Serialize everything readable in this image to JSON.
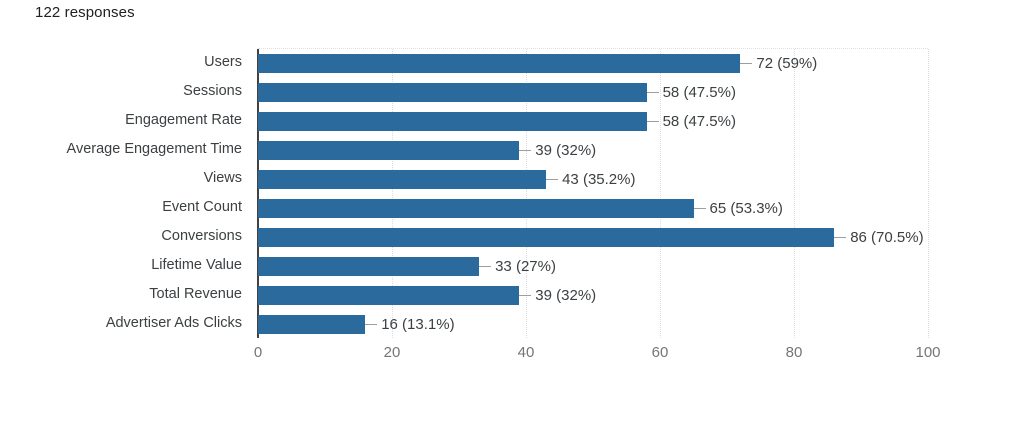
{
  "header": {
    "responses_label": "122 responses"
  },
  "chart_data": {
    "type": "bar",
    "orientation": "horizontal",
    "title": "122 responses",
    "total_responses": 122,
    "categories": [
      "Users",
      "Sessions",
      "Engagement Rate",
      "Average Engagement Time",
      "Views",
      "Event Count",
      "Conversions",
      "Lifetime Value",
      "Total Revenue",
      "Advertiser Ads Clicks"
    ],
    "values": [
      72,
      58,
      58,
      39,
      43,
      65,
      86,
      33,
      39,
      16
    ],
    "value_labels": [
      "72 (59%)",
      "58 (47.5%)",
      "58 (47.5%)",
      "39 (32%)",
      "43 (35.2%)",
      "65 (53.3%)",
      "86 (70.5%)",
      "33 (27%)",
      "39 (32%)",
      "16 (13.1%)"
    ],
    "xlabel": "",
    "ylabel": "",
    "xlim": [
      0,
      100
    ],
    "xticks": [
      0,
      20,
      40,
      60,
      80,
      100
    ],
    "grid": "vertical-dotted",
    "legend": "none",
    "colors": {
      "bar": "#2b6a9d",
      "axis": "#424242",
      "gridline": "#dadce0",
      "category_label": "#3c4043",
      "value_label": "#3c4043",
      "tick_label": "#757575",
      "title": "#202124",
      "connector": "#9e9e9e",
      "background": "#ffffff"
    }
  }
}
